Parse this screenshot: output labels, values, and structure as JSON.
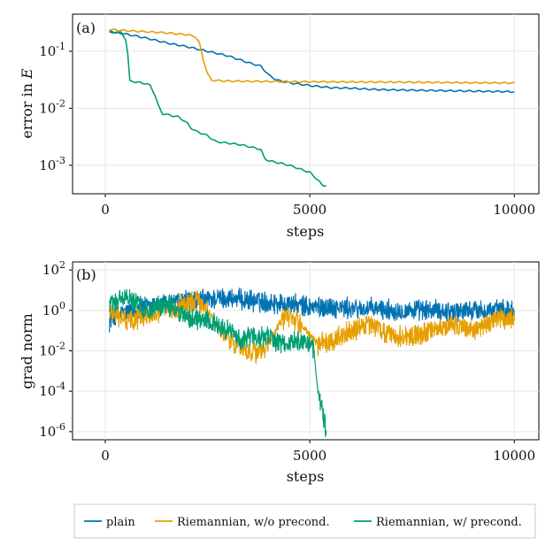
{
  "colors": {
    "plain": "#0072B2",
    "riem_noprec": "#E69F00",
    "riem_prec": "#009E73",
    "grid": "#e6e6e6",
    "axis": "#000000"
  },
  "legend": {
    "items": [
      {
        "label": "plain",
        "color": "#0072B2"
      },
      {
        "label": "Riemannian, w/o precond.",
        "color": "#E69F00"
      },
      {
        "label": "Riemannian, w/ precond.",
        "color": "#009E73"
      }
    ]
  },
  "chart_data": [
    {
      "type": "line",
      "panel_label": "(a)",
      "xlabel": "steps",
      "ylabel_prefix": "error in ",
      "ylabel_var": "E",
      "yscale": "log",
      "xlim": [
        -800,
        10600
      ],
      "ylim_log10": [
        -3.5,
        -0.35
      ],
      "xticks": [
        0,
        5000,
        10000
      ],
      "xtick_labels": [
        "0",
        "5000",
        "10000"
      ],
      "yticks_exp": [
        -1,
        -2,
        -3
      ],
      "ytick_labels": [
        {
          "base": "10",
          "exp": "-1"
        },
        {
          "base": "10",
          "exp": "-2"
        },
        {
          "base": "10",
          "exp": "-3"
        }
      ],
      "series": [
        {
          "name": "plain",
          "color": "#0072B2",
          "x": [
            100,
            500,
            1000,
            1500,
            2000,
            2500,
            3000,
            3500,
            3800,
            4000,
            4200,
            4500,
            5000,
            5500,
            6000,
            6500,
            7000,
            8000,
            9000,
            10000
          ],
          "y": [
            0.22,
            0.2,
            0.17,
            0.14,
            0.12,
            0.1,
            0.083,
            0.063,
            0.055,
            0.038,
            0.031,
            0.028,
            0.025,
            0.023,
            0.0225,
            0.0215,
            0.021,
            0.0205,
            0.02,
            0.0195
          ]
        },
        {
          "name": "Riemannian, w/o precond.",
          "color": "#E69F00",
          "x": [
            100,
            500,
            1000,
            1500,
            2000,
            2200,
            2300,
            2400,
            2500,
            2600,
            3000,
            4000,
            5000,
            6000,
            7000,
            8000,
            9000,
            10000
          ],
          "y": [
            0.24,
            0.23,
            0.22,
            0.21,
            0.195,
            0.18,
            0.14,
            0.07,
            0.04,
            0.031,
            0.03,
            0.0295,
            0.0292,
            0.029,
            0.0288,
            0.0285,
            0.028,
            0.0278
          ]
        },
        {
          "name": "Riemannian, w/ precond.",
          "color": "#009E73",
          "x": [
            100,
            400,
            500,
            550,
            600,
            1000,
            1100,
            1200,
            1300,
            1400,
            1800,
            2000,
            2100,
            2200,
            2500,
            2700,
            2900,
            3300,
            3800,
            3900,
            4000,
            4500,
            5000,
            5200,
            5300,
            5400
          ],
          "y": [
            0.22,
            0.21,
            0.16,
            0.09,
            0.03,
            0.027,
            0.025,
            0.018,
            0.011,
            0.008,
            0.007,
            0.0055,
            0.0045,
            0.004,
            0.0033,
            0.0026,
            0.0025,
            0.0023,
            0.0019,
            0.0013,
            0.0012,
            0.001,
            0.00075,
            0.00055,
            0.00045,
            0.00044
          ]
        }
      ]
    },
    {
      "type": "line",
      "panel_label": "(b)",
      "xlabel": "steps",
      "ylabel": "grad norm",
      "yscale": "log",
      "xlim": [
        -800,
        10600
      ],
      "ylim_log10": [
        -6.4,
        2.4
      ],
      "xticks": [
        0,
        5000,
        10000
      ],
      "xtick_labels": [
        "0",
        "5000",
        "10000"
      ],
      "yticks_exp": [
        2,
        0,
        -2,
        -4,
        -6
      ],
      "ytick_labels": [
        {
          "base": "10",
          "exp": "2"
        },
        {
          "base": "10",
          "exp": "0"
        },
        {
          "base": "10",
          "exp": "-2"
        },
        {
          "base": "10",
          "exp": "-4"
        },
        {
          "base": "10",
          "exp": "-6"
        }
      ],
      "series": [
        {
          "name": "plain",
          "color": "#0072B2",
          "noise_amp": 0.45,
          "x": [
            100,
            500,
            1000,
            1500,
            2000,
            2500,
            3000,
            3500,
            4000,
            4500,
            5000,
            5500,
            6000,
            6500,
            7000,
            7500,
            8000,
            8500,
            9000,
            9500,
            10000
          ],
          "y": [
            0.3,
            0.8,
            1.5,
            2.0,
            3.0,
            3.5,
            4.0,
            3.0,
            2.5,
            2.0,
            1.5,
            1.5,
            1.2,
            1.2,
            1.0,
            1.0,
            1.0,
            0.9,
            1.0,
            1.0,
            1.0
          ]
        },
        {
          "name": "Riemannian, w/o precond.",
          "color": "#E69F00",
          "noise_amp": 0.45,
          "x": [
            100,
            500,
            1000,
            1500,
            2000,
            2300,
            2500,
            2800,
            3200,
            3500,
            3800,
            4000,
            4300,
            4500,
            4800,
            5200,
            5500,
            6000,
            6500,
            7000,
            7500,
            8000,
            8500,
            9000,
            9500,
            10000
          ],
          "y": [
            1.0,
            0.3,
            0.5,
            1.0,
            2.0,
            3.0,
            1.0,
            0.1,
            0.02,
            0.01,
            0.008,
            0.02,
            0.3,
            0.5,
            0.2,
            0.02,
            0.03,
            0.1,
            0.2,
            0.05,
            0.05,
            0.1,
            0.2,
            0.1,
            0.3,
            0.4
          ]
        },
        {
          "name": "Riemannian, w/ precond.",
          "color": "#009E73",
          "noise_amp": 0.45,
          "x": [
            100,
            500,
            1000,
            1500,
            2000,
            2500,
            3000,
            3300,
            3600,
            4000,
            4300,
            4700,
            5000,
            5100,
            5150,
            5200,
            5250,
            5300,
            5350,
            5400
          ],
          "y": [
            2.0,
            5.0,
            1.0,
            2.0,
            0.5,
            0.3,
            0.1,
            0.03,
            0.05,
            0.05,
            0.02,
            0.03,
            0.02,
            0.01,
            0.001,
            0.0001,
            3e-05,
            1e-05,
            3e-06,
            1.2e-06
          ]
        }
      ]
    }
  ]
}
